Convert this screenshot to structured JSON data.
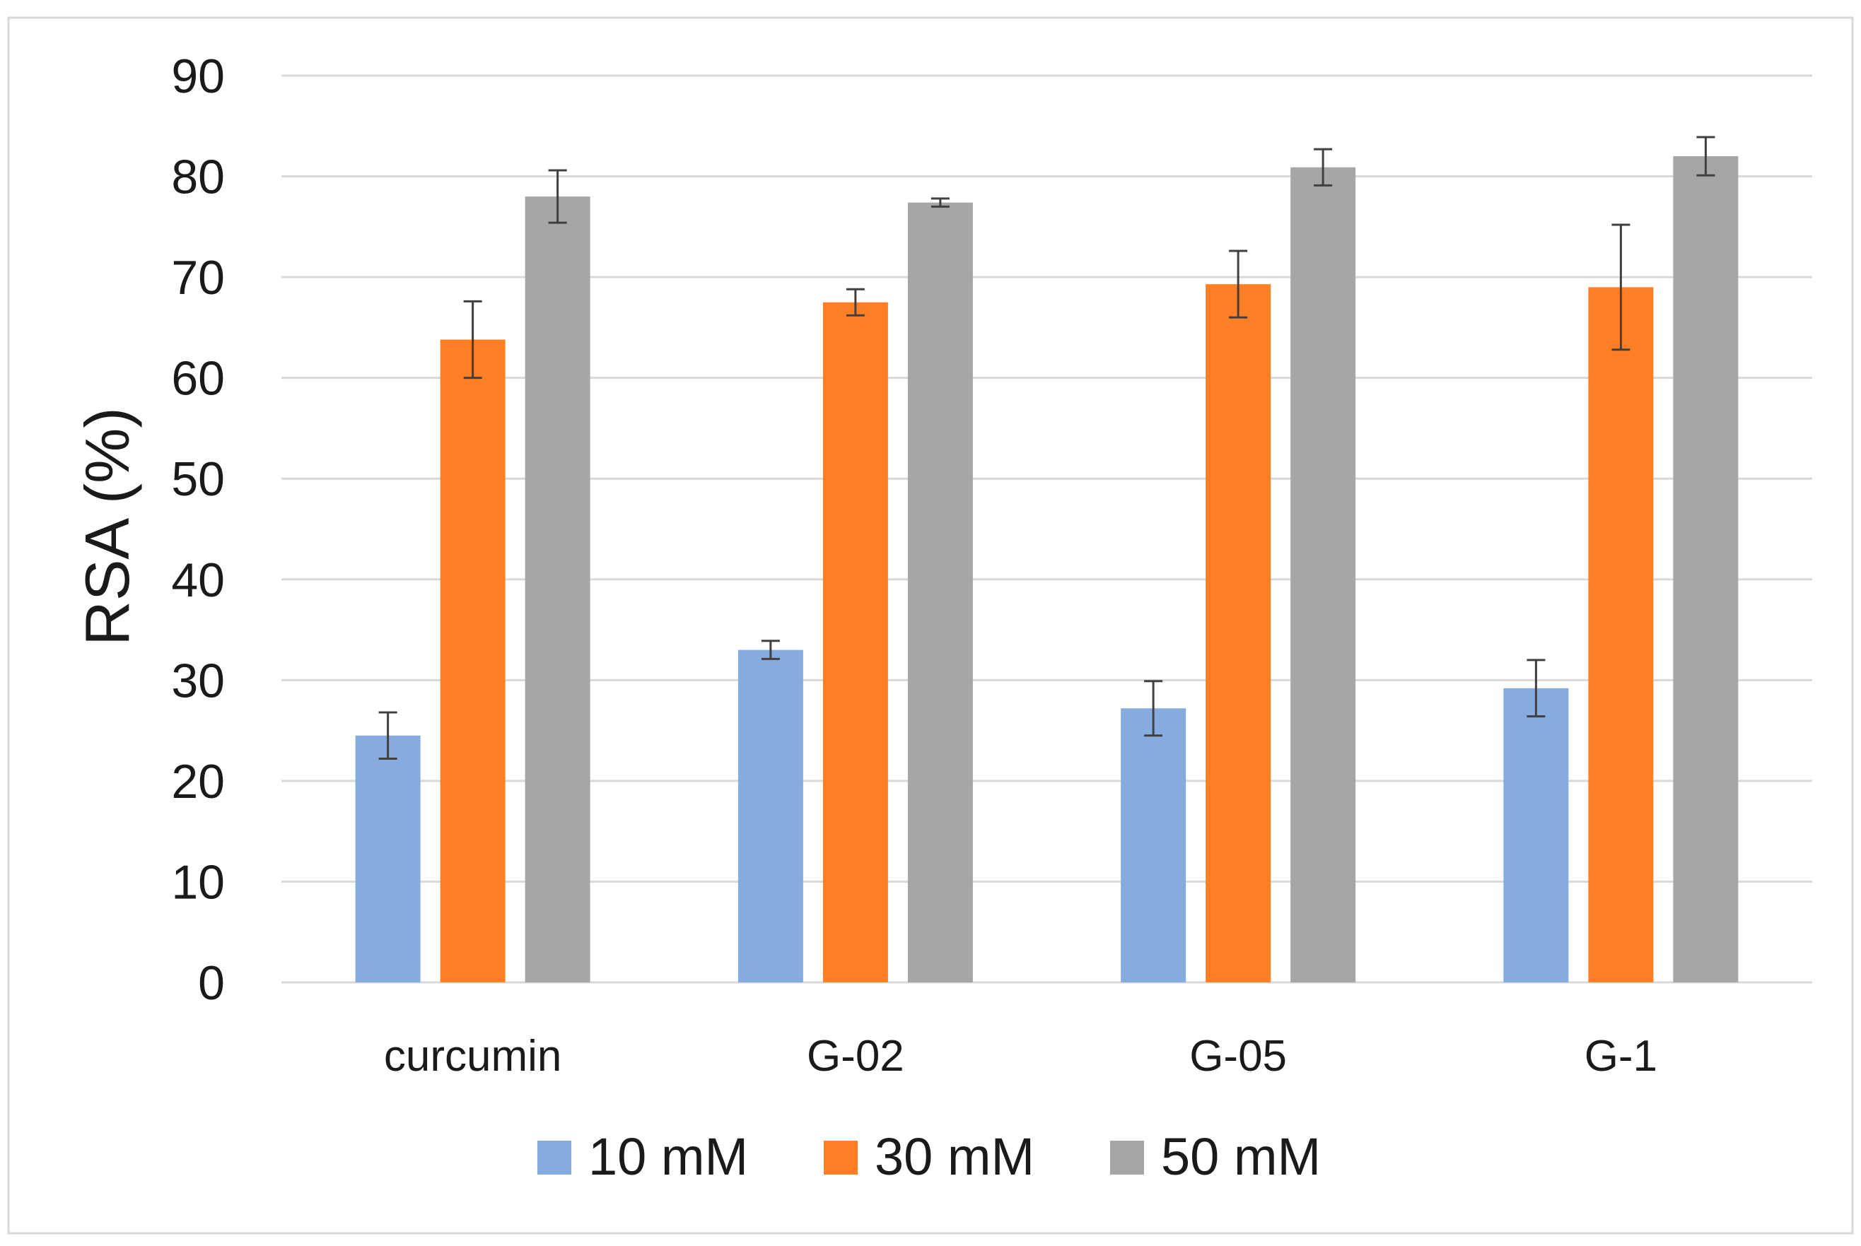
{
  "chart_data": {
    "type": "bar",
    "title": "",
    "xlabel": "",
    "ylabel": "RSA (%)",
    "ylim": [
      0,
      90
    ],
    "yticks": [
      0,
      10,
      20,
      30,
      40,
      50,
      60,
      70,
      80,
      90
    ],
    "grid": true,
    "legend_position": "bottom",
    "categories": [
      "curcumin",
      "G-02",
      "G-05",
      "G-1"
    ],
    "series": [
      {
        "name": "10 mM",
        "color": "#86ACDF",
        "values": [
          24.5,
          33,
          27.2,
          29.2
        ],
        "errors": [
          2.3,
          0.9,
          2.7,
          2.8
        ]
      },
      {
        "name": "30 mM",
        "color": "#FF7F27",
        "values": [
          63.8,
          67.5,
          69.3,
          69
        ],
        "errors": [
          3.8,
          1.3,
          3.3,
          6.2
        ]
      },
      {
        "name": "50 mM",
        "color": "#A6A6A6",
        "values": [
          78,
          77.4,
          80.9,
          82
        ],
        "errors": [
          2.6,
          0.4,
          1.8,
          1.9
        ]
      }
    ],
    "error_bar_color": "#404040",
    "frame_color": "#d9d9d9",
    "grid_color": "#d9d9d9"
  }
}
